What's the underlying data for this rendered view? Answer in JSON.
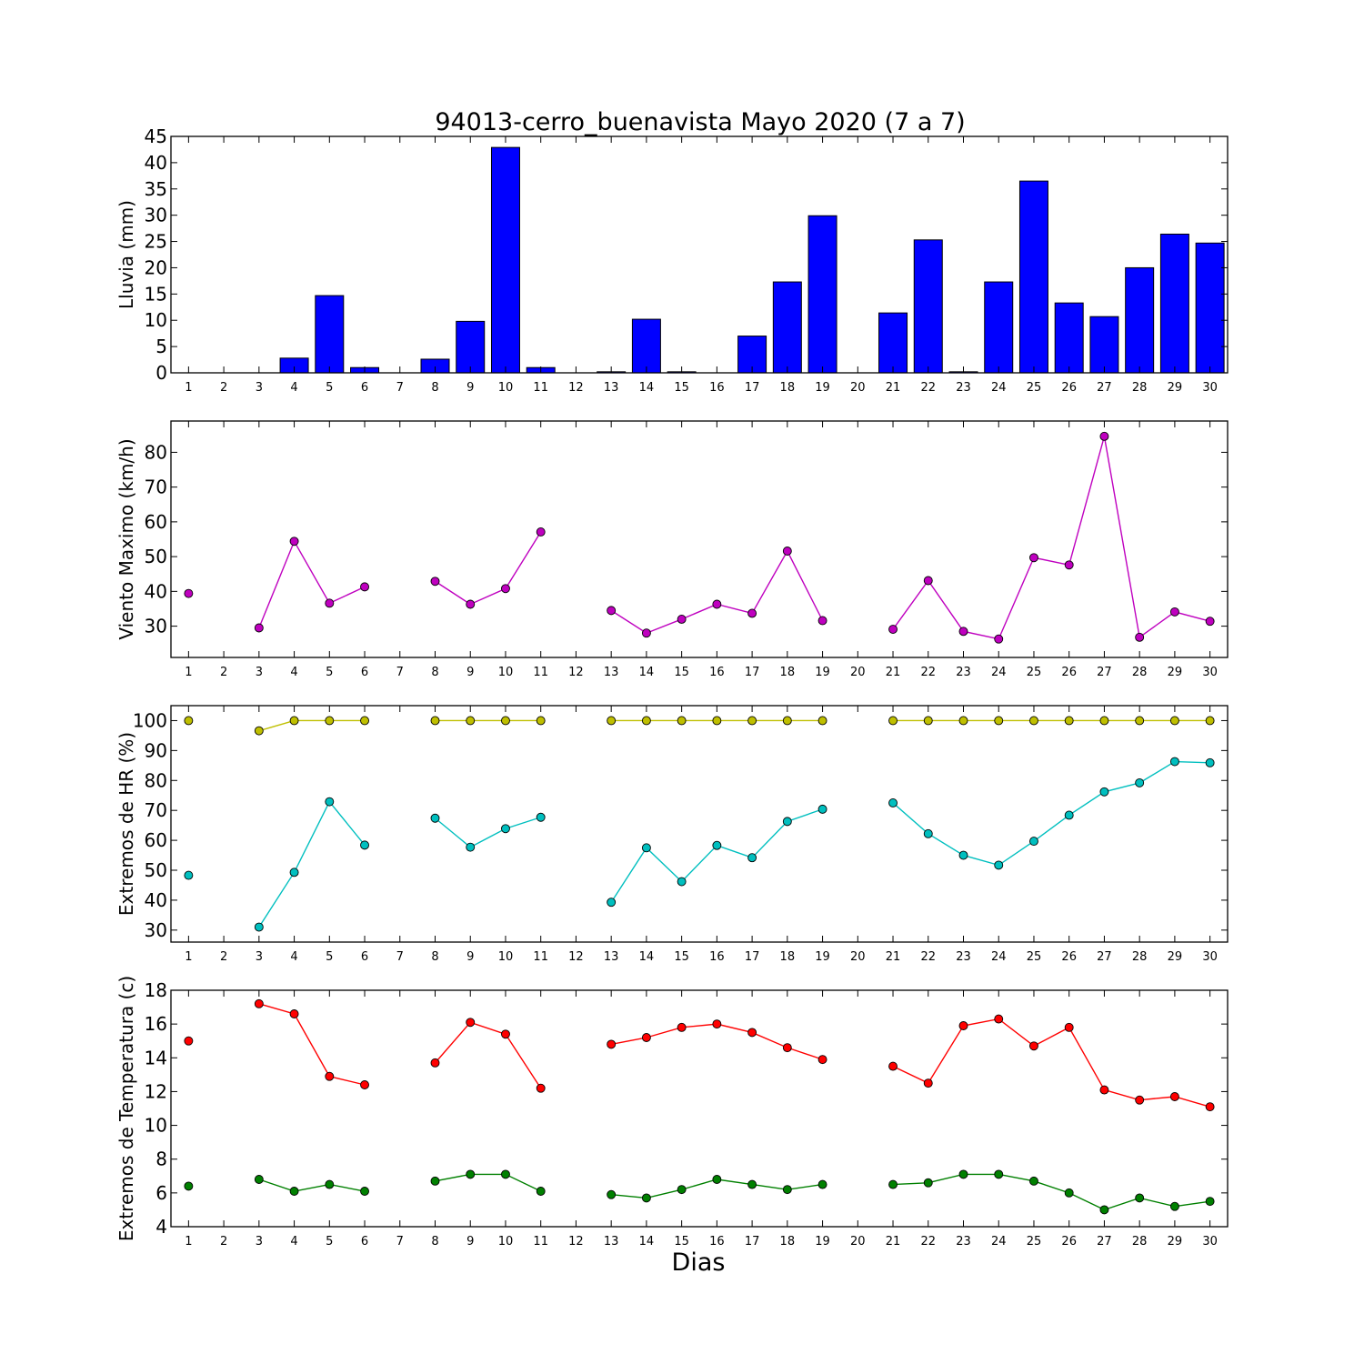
{
  "figure": {
    "title": "94013-cerro_buenavista Mayo 2020  (7 a 7)",
    "xlabel": "Dias"
  },
  "chart_data": [
    {
      "type": "bar",
      "ylabel": "Lluvia (mm)",
      "ylim": [
        0,
        45
      ],
      "yticks": [
        0,
        5,
        10,
        15,
        20,
        25,
        30,
        35,
        40,
        45
      ],
      "categories": [
        1,
        2,
        3,
        4,
        5,
        6,
        7,
        8,
        9,
        10,
        11,
        12,
        13,
        14,
        15,
        16,
        17,
        18,
        19,
        20,
        21,
        22,
        23,
        24,
        25,
        26,
        27,
        28,
        29,
        30
      ],
      "grid": false,
      "series": [
        {
          "color": "#0000ff",
          "values": [
            0,
            0,
            0,
            2.8,
            14.7,
            1.0,
            0,
            2.6,
            9.8,
            42.9,
            1.0,
            0,
            0.2,
            10.2,
            0.2,
            0,
            7.0,
            17.3,
            29.9,
            0,
            11.4,
            25.3,
            0.2,
            17.3,
            36.5,
            13.3,
            10.7,
            20.0,
            26.4,
            24.7
          ]
        }
      ]
    },
    {
      "type": "line",
      "ylabel": "Viento Maximo (km/h)",
      "ylim": [
        21,
        89
      ],
      "yticks": [
        30,
        40,
        50,
        60,
        70,
        80
      ],
      "x": [
        1,
        2,
        3,
        4,
        5,
        6,
        7,
        8,
        9,
        10,
        11,
        12,
        13,
        14,
        15,
        16,
        17,
        18,
        19,
        20,
        21,
        22,
        23,
        24,
        25,
        26,
        27,
        28,
        29,
        30
      ],
      "grid": false,
      "series": [
        {
          "color": "#bf00bf",
          "values": [
            39.4,
            null,
            29.5,
            54.4,
            36.6,
            41.3,
            null,
            42.9,
            36.3,
            40.8,
            57.1,
            null,
            34.5,
            28.0,
            32.0,
            36.3,
            33.7,
            51.6,
            31.6,
            null,
            29.1,
            43.1,
            28.5,
            26.3,
            49.7,
            47.6,
            84.6,
            26.8,
            34.1,
            31.4
          ]
        }
      ]
    },
    {
      "type": "line",
      "ylabel": "Extremos de HR (%)",
      "ylim": [
        26,
        105
      ],
      "yticks": [
        30,
        40,
        50,
        60,
        70,
        80,
        90,
        100
      ],
      "x": [
        1,
        2,
        3,
        4,
        5,
        6,
        7,
        8,
        9,
        10,
        11,
        12,
        13,
        14,
        15,
        16,
        17,
        18,
        19,
        20,
        21,
        22,
        23,
        24,
        25,
        26,
        27,
        28,
        29,
        30
      ],
      "grid": false,
      "series": [
        {
          "color": "#bfbf00",
          "values": [
            100,
            null,
            96.6,
            100,
            100,
            100,
            null,
            100,
            100,
            100,
            100,
            null,
            100,
            100,
            100,
            100,
            100,
            100,
            100,
            null,
            100,
            100,
            100,
            100,
            100,
            100,
            100,
            100,
            100,
            100
          ]
        },
        {
          "color": "#00bfbf",
          "values": [
            48.3,
            null,
            31.0,
            49.3,
            72.9,
            58.4,
            null,
            67.4,
            57.7,
            63.9,
            67.7,
            null,
            39.3,
            57.5,
            46.2,
            58.3,
            54.2,
            66.3,
            70.4,
            null,
            72.5,
            62.2,
            55.0,
            51.7,
            59.7,
            68.4,
            76.2,
            79.2,
            86.3,
            85.9
          ]
        }
      ]
    },
    {
      "type": "line",
      "ylabel": "Extremos de Temperatura (c)",
      "ylim": [
        4,
        18
      ],
      "yticks": [
        4,
        6,
        8,
        10,
        12,
        14,
        16,
        18
      ],
      "x": [
        1,
        2,
        3,
        4,
        5,
        6,
        7,
        8,
        9,
        10,
        11,
        12,
        13,
        14,
        15,
        16,
        17,
        18,
        19,
        20,
        21,
        22,
        23,
        24,
        25,
        26,
        27,
        28,
        29,
        30
      ],
      "grid": false,
      "series": [
        {
          "color": "#ff0000",
          "values": [
            15.0,
            null,
            17.2,
            16.6,
            12.9,
            12.4,
            null,
            13.7,
            16.1,
            15.4,
            12.2,
            null,
            14.8,
            15.2,
            15.8,
            16.0,
            15.5,
            14.6,
            13.9,
            null,
            13.5,
            12.5,
            15.9,
            16.3,
            14.7,
            15.8,
            12.1,
            11.5,
            11.7,
            11.1
          ]
        },
        {
          "color": "#008000",
          "values": [
            6.4,
            null,
            6.8,
            6.1,
            6.5,
            6.1,
            null,
            6.7,
            7.1,
            7.1,
            6.1,
            null,
            5.9,
            5.7,
            6.2,
            6.8,
            6.5,
            6.2,
            6.5,
            null,
            6.5,
            6.6,
            7.1,
            7.1,
            6.7,
            6.0,
            5.0,
            5.7,
            5.2,
            5.5
          ]
        }
      ]
    }
  ]
}
